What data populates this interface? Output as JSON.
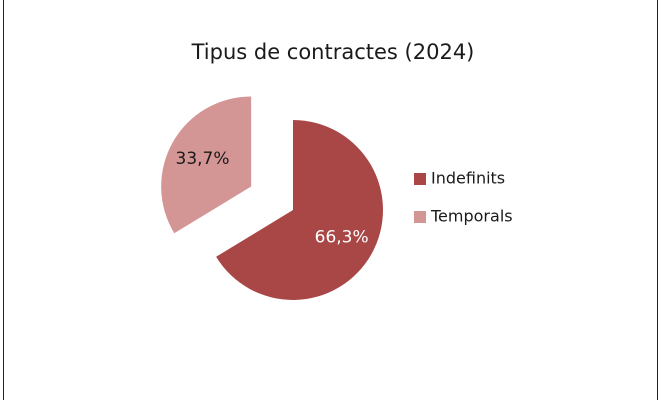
{
  "chart_data": {
    "type": "pie",
    "title": "Tipus de contractes (2024)",
    "categories": [
      "Indefinits",
      "Temporals"
    ],
    "values": [
      66.3,
      33.7
    ],
    "value_labels": [
      "66,3%",
      "33,7%"
    ],
    "colors": [
      "#a94646",
      "#d49595"
    ],
    "label_colors": [
      "#ffffff",
      "#1a1a1a"
    ],
    "legend": "right"
  }
}
